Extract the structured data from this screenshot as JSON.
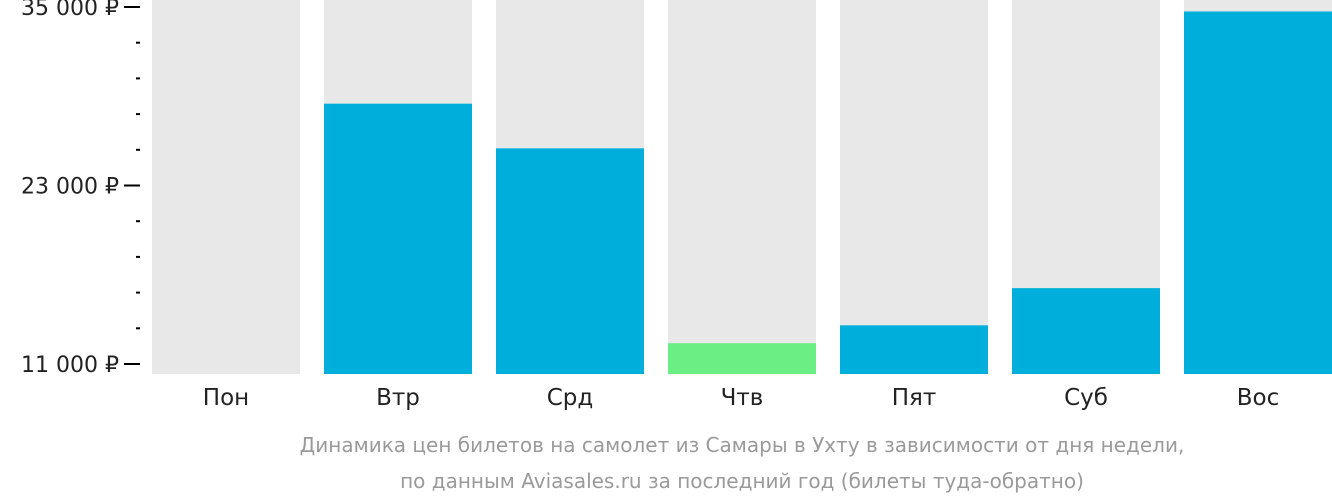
{
  "chart_data": {
    "type": "bar",
    "categories": [
      "Пон",
      "Втр",
      "Срд",
      "Чтв",
      "Пят",
      "Суб",
      "Вос"
    ],
    "values": [
      null,
      28500,
      25500,
      12400,
      13600,
      16100,
      34700
    ],
    "highlight": [
      false,
      false,
      false,
      true,
      false,
      false,
      false
    ],
    "ylim": [
      11000,
      35000
    ],
    "yticks": [
      {
        "value": 11000,
        "label": "11 000 ₽"
      },
      {
        "value": 23000,
        "label": "23 000 ₽"
      },
      {
        "value": 35000,
        "label": "35 000 ₽"
      }
    ],
    "minor_tick_step": 2400,
    "caption": [
      "Динамика цен билетов на самолет из Самары в Ухту в зависимости от дня недели,",
      "по данным Aviasales.ru за последний год (билеты туда-обратно)"
    ],
    "colors": {
      "bar": "#00AEDB",
      "highlight": "#6BEE84",
      "background_bar": "#E8E8E8",
      "axis": "#000000",
      "caption": "#9A9A9A"
    },
    "grid": false,
    "legend": "none"
  }
}
